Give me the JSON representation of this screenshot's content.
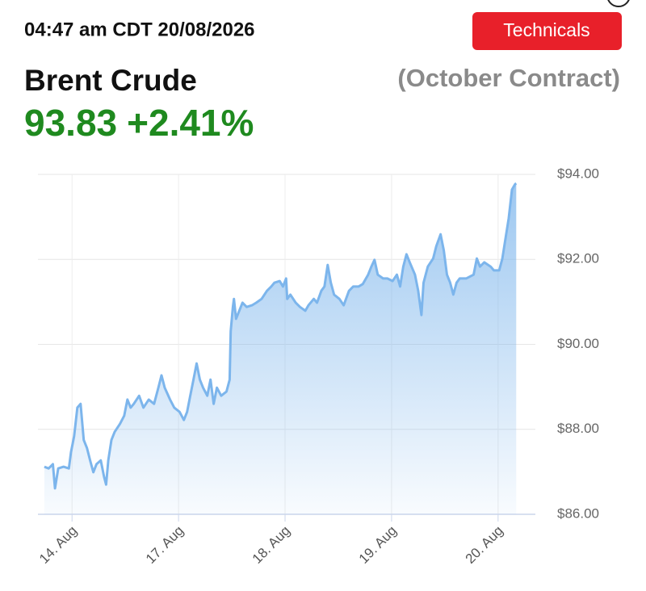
{
  "header": {
    "timestamp": "04:47 am CDT 20/08/2026",
    "button": "Technicals",
    "instrument": "Brent Crude",
    "contract": "(October Contract)",
    "price": "93.83",
    "change": "+2.41%"
  },
  "chart_data": {
    "type": "area",
    "color": "#7cb5ec",
    "x": [
      -0.26,
      -0.22,
      -0.18,
      -0.16,
      -0.13,
      -0.08,
      -0.03,
      -0.01,
      0.02,
      0.05,
      0.08,
      0.11,
      0.14,
      0.17,
      0.2,
      0.23,
      0.27,
      0.3,
      0.32,
      0.34,
      0.37,
      0.4,
      0.45,
      0.49,
      0.52,
      0.55,
      0.58,
      0.63,
      0.67,
      0.72,
      0.77,
      0.81,
      0.84,
      0.87,
      0.92,
      0.96,
      1.01,
      1.05,
      1.08,
      1.11,
      1.14,
      1.17,
      1.2,
      1.23,
      1.27,
      1.3,
      1.33,
      1.36,
      1.4,
      1.45,
      1.48,
      1.49,
      1.51,
      1.52,
      1.54,
      1.57,
      1.6,
      1.64,
      1.69,
      1.73,
      1.78,
      1.83,
      1.87,
      1.9,
      1.95,
      1.98,
      2.01,
      2.02,
      2.05,
      2.1,
      2.14,
      2.19,
      2.22,
      2.27,
      2.3,
      2.34,
      2.37,
      2.4,
      2.43,
      2.46,
      2.51,
      2.55,
      2.6,
      2.64,
      2.69,
      2.73,
      2.78,
      2.81,
      2.84,
      2.87,
      2.92,
      2.96,
      3.01,
      3.05,
      3.08,
      3.11,
      3.14,
      3.17,
      3.22,
      3.25,
      3.28,
      3.3,
      3.34,
      3.39,
      3.42,
      3.46,
      3.49,
      3.52,
      3.55,
      3.58,
      3.61,
      3.64,
      3.7,
      3.77,
      3.8,
      3.83,
      3.87,
      3.93,
      3.96,
      4.01,
      4.04,
      4.07,
      4.1,
      4.13,
      4.16,
      4.17
    ],
    "values": [
      87.12,
      87.08,
      87.18,
      86.61,
      87.08,
      87.12,
      87.08,
      87.46,
      87.84,
      88.51,
      88.6,
      87.75,
      87.56,
      87.27,
      86.99,
      87.18,
      87.27,
      86.89,
      86.7,
      87.27,
      87.75,
      87.94,
      88.13,
      88.32,
      88.7,
      88.51,
      88.6,
      88.79,
      88.51,
      88.7,
      88.6,
      88.98,
      89.27,
      88.98,
      88.7,
      88.51,
      88.41,
      88.22,
      88.41,
      88.79,
      89.17,
      89.55,
      89.17,
      88.98,
      88.79,
      89.17,
      88.6,
      88.98,
      88.79,
      88.89,
      89.17,
      90.31,
      90.88,
      91.07,
      90.6,
      90.79,
      90.98,
      90.88,
      90.92,
      90.98,
      91.07,
      91.26,
      91.36,
      91.45,
      91.49,
      91.36,
      91.55,
      91.07,
      91.17,
      90.98,
      90.88,
      90.79,
      90.92,
      91.07,
      90.98,
      91.26,
      91.36,
      91.87,
      91.45,
      91.17,
      91.07,
      90.92,
      91.26,
      91.36,
      91.36,
      91.42,
      91.64,
      91.83,
      91.99,
      91.64,
      91.55,
      91.55,
      91.49,
      91.64,
      91.36,
      91.83,
      92.12,
      91.93,
      91.64,
      91.26,
      90.69,
      91.45,
      91.83,
      92.02,
      92.31,
      92.59,
      92.21,
      91.64,
      91.45,
      91.17,
      91.45,
      91.55,
      91.55,
      91.64,
      92.02,
      91.83,
      91.93,
      91.83,
      91.74,
      91.74,
      92.02,
      92.5,
      92.97,
      93.64,
      93.77,
      93.79
    ],
    "xlim": [
      -0.32,
      4.35
    ],
    "xticks": [
      {
        "value": 0,
        "label": "14. Aug"
      },
      {
        "value": 1,
        "label": "17. Aug"
      },
      {
        "value": 2,
        "label": "18. Aug"
      },
      {
        "value": 3,
        "label": "19. Aug"
      },
      {
        "value": 4,
        "label": "20. Aug"
      }
    ],
    "ylim": [
      86,
      94
    ],
    "yticks": [
      {
        "value": 86,
        "label": "$86.00"
      },
      {
        "value": 88,
        "label": "$88.00"
      },
      {
        "value": 90,
        "label": "$90.00"
      },
      {
        "value": 92,
        "label": "$92.00"
      },
      {
        "value": 94,
        "label": "$94.00"
      }
    ],
    "grid": true
  }
}
